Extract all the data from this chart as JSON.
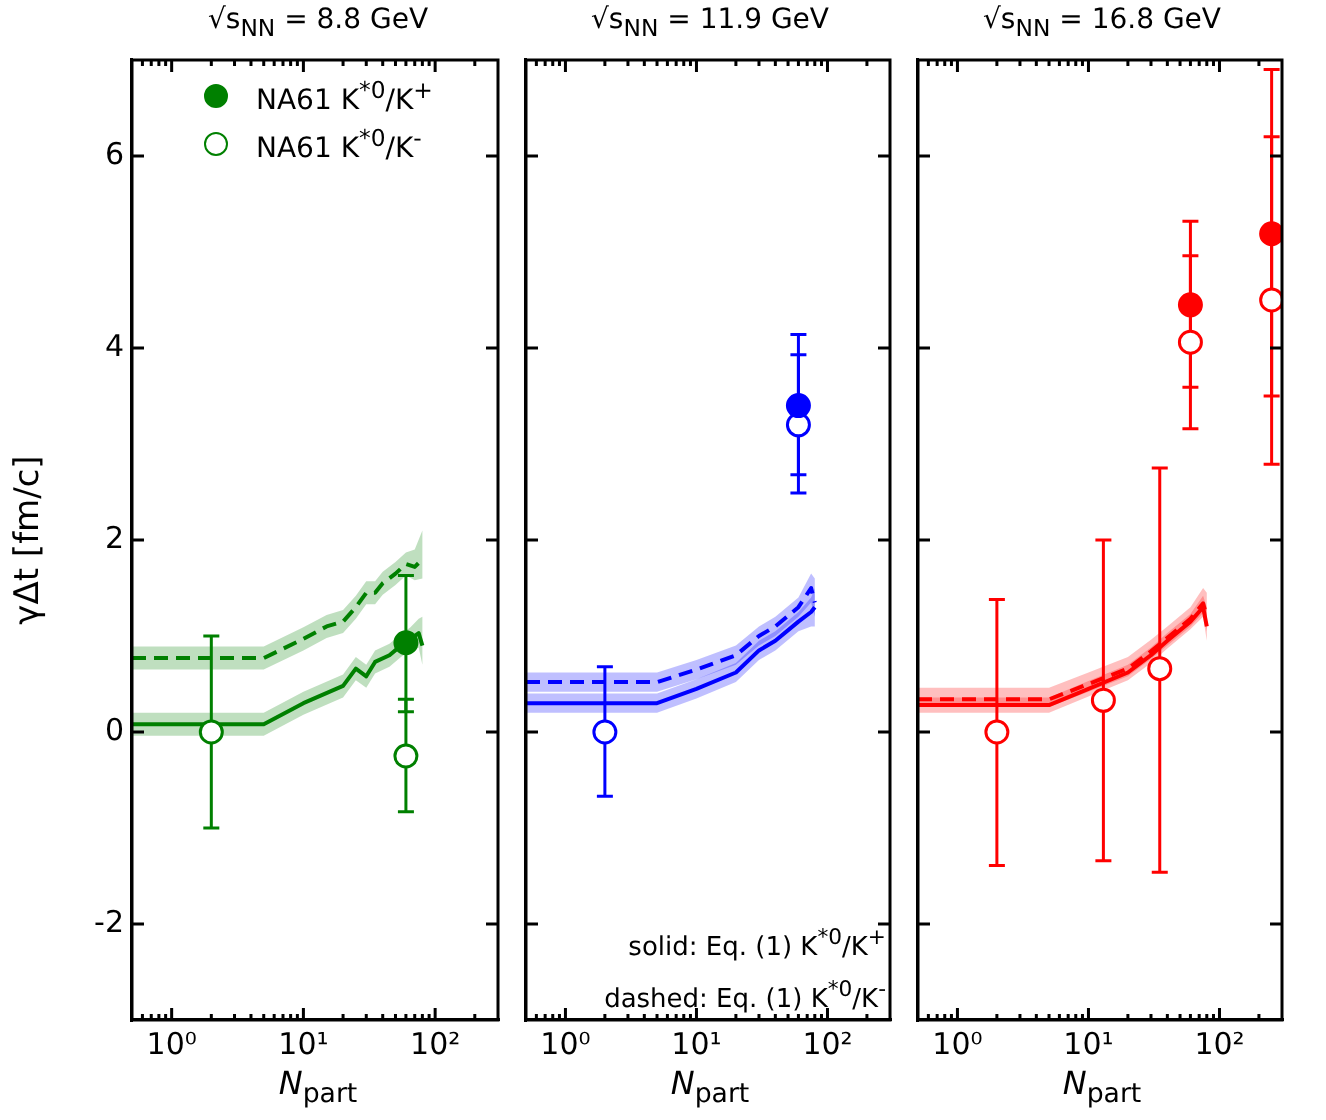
{
  "chart_data": [
    {
      "type": "line",
      "title": "√s$_{NN}$ = 8.8 GeV",
      "xlabel": "N$_{part}$",
      "ylabel": "γΔt [fm/c]",
      "log": "x",
      "grid": false,
      "legend": "top",
      "xlim": [
        0.5,
        300
      ],
      "ylim": [
        -3,
        7
      ],
      "yticks": [
        -2,
        0,
        2,
        4,
        6
      ],
      "xticks": [
        {
          "value": 0.6,
          "label": null
        },
        {
          "value": 0.7,
          "label": null
        },
        {
          "value": 0.8,
          "label": null
        },
        {
          "value": 0.9,
          "label": null
        },
        {
          "value": 1,
          "label": "10⁰"
        },
        {
          "value": 2,
          "label": null
        },
        {
          "value": 3,
          "label": null
        },
        {
          "value": 4,
          "label": null
        },
        {
          "value": 5,
          "label": null
        },
        {
          "value": 6,
          "label": null
        },
        {
          "value": 7,
          "label": null
        },
        {
          "value": 8,
          "label": null
        },
        {
          "value": 9,
          "label": null
        },
        {
          "value": 10,
          "label": "10¹"
        },
        {
          "value": 20,
          "label": null
        },
        {
          "value": 30,
          "label": null
        },
        {
          "value": 40,
          "label": null
        },
        {
          "value": 50,
          "label": null
        },
        {
          "value": 60,
          "label": null
        },
        {
          "value": 70,
          "label": null
        },
        {
          "value": 80,
          "label": null
        },
        {
          "value": 90,
          "label": null
        },
        {
          "value": 100,
          "label": "10²"
        },
        {
          "value": 200,
          "label": null
        }
      ],
      "series": [
        {
          "type": "line",
          "color": "#008000",
          "line_style": "solid",
          "x": [
            0.5,
            5,
            10,
            20,
            25,
            30,
            35,
            45,
            55,
            65,
            75,
            80
          ],
          "values": [
            0.08,
            0.08,
            0.3,
            0.48,
            0.66,
            0.58,
            0.73,
            0.8,
            0.9,
            0.97,
            1.03,
            0.9
          ],
          "lower": [
            -0.04,
            -0.04,
            0.18,
            0.36,
            0.54,
            0.46,
            0.61,
            0.68,
            0.78,
            0.85,
            0.88,
            0.7
          ],
          "upper": [
            0.2,
            0.2,
            0.42,
            0.6,
            0.78,
            0.7,
            0.85,
            0.92,
            1.02,
            1.09,
            1.18,
            1.2
          ]
        },
        {
          "type": "line",
          "color": "#008000",
          "line_style": "dashed",
          "x": [
            0.5,
            5,
            10,
            15,
            20,
            25,
            30,
            35,
            40,
            50,
            60,
            70,
            80
          ],
          "values": [
            0.77,
            0.77,
            0.97,
            1.1,
            1.15,
            1.3,
            1.45,
            1.45,
            1.55,
            1.65,
            1.75,
            1.72,
            1.8
          ],
          "lower": [
            0.65,
            0.65,
            0.85,
            0.98,
            1.03,
            1.18,
            1.33,
            1.33,
            1.43,
            1.53,
            1.63,
            1.58,
            1.6
          ],
          "upper": [
            0.89,
            0.89,
            1.09,
            1.22,
            1.27,
            1.42,
            1.57,
            1.57,
            1.67,
            1.77,
            1.87,
            1.9,
            2.1
          ]
        },
        {
          "type": "scatter",
          "name": "NA61 K$^{*0}$/K$^{+}$",
          "color": "#008000",
          "marker": "circle",
          "x": [
            60
          ],
          "values": [
            0.93
          ],
          "errors": [
            [
              0.21,
              1.63
            ]
          ]
        },
        {
          "type": "scatter",
          "name": "NA61 K$^{*0}$/K$^{-}$",
          "color": "#008000",
          "marker": "circle",
          "x": [
            2,
            60
          ],
          "values": [
            0,
            -0.25
          ],
          "errors": [
            [
              -1.0,
              1.0
            ],
            [
              -0.83,
              0.34
            ]
          ]
        }
      ]
    },
    {
      "type": "line",
      "title": "√s$_{NN}$ = 11.9 GeV",
      "xlabel": "N$_{part}$",
      "log": "x",
      "grid": false,
      "tick_labels": "x",
      "annotations": [
        "solid: Eq. (1) K$^{*0}$/K$^{+}$",
        "dashed: Eq. (1) K$^{*0}$/K$^{-}$"
      ],
      "xlim": [
        0.5,
        300
      ],
      "ylim": [
        -3,
        7
      ],
      "yticks": [
        -2,
        0,
        2,
        4,
        6
      ],
      "xticks": [
        {
          "value": 0.6,
          "label": null
        },
        {
          "value": 0.7,
          "label": null
        },
        {
          "value": 0.8,
          "label": null
        },
        {
          "value": 0.9,
          "label": null
        },
        {
          "value": 1,
          "label": "10⁰"
        },
        {
          "value": 2,
          "label": null
        },
        {
          "value": 3,
          "label": null
        },
        {
          "value": 4,
          "label": null
        },
        {
          "value": 5,
          "label": null
        },
        {
          "value": 6,
          "label": null
        },
        {
          "value": 7,
          "label": null
        },
        {
          "value": 8,
          "label": null
        },
        {
          "value": 9,
          "label": null
        },
        {
          "value": 10,
          "label": "10¹"
        },
        {
          "value": 20,
          "label": null
        },
        {
          "value": 30,
          "label": null
        },
        {
          "value": 40,
          "label": null
        },
        {
          "value": 50,
          "label": null
        },
        {
          "value": 60,
          "label": null
        },
        {
          "value": 70,
          "label": null
        },
        {
          "value": 80,
          "label": null
        },
        {
          "value": 90,
          "label": null
        },
        {
          "value": 100,
          "label": "10²"
        },
        {
          "value": 200,
          "label": null
        }
      ],
      "series": [
        {
          "type": "line",
          "color": "#0000ff",
          "line_style": "solid",
          "x": [
            0.5,
            5,
            10,
            20,
            30,
            40,
            60,
            75,
            80
          ],
          "values": [
            0.3,
            0.3,
            0.45,
            0.62,
            0.85,
            0.95,
            1.15,
            1.25,
            1.3
          ],
          "lower": [
            0.2,
            0.2,
            0.35,
            0.52,
            0.75,
            0.85,
            1.05,
            1.1,
            1.1
          ],
          "upper": [
            0.4,
            0.4,
            0.55,
            0.72,
            0.95,
            1.05,
            1.25,
            1.4,
            1.5
          ]
        },
        {
          "type": "line",
          "color": "#0000ff",
          "line_style": "dashed",
          "x": [
            0.5,
            5,
            10,
            20,
            30,
            40,
            60,
            75,
            80
          ],
          "values": [
            0.52,
            0.52,
            0.65,
            0.8,
            1.0,
            1.1,
            1.3,
            1.5,
            1.35
          ],
          "lower": [
            0.42,
            0.42,
            0.55,
            0.7,
            0.9,
            1.0,
            1.2,
            1.35,
            1.2
          ],
          "upper": [
            0.62,
            0.62,
            0.75,
            0.9,
            1.1,
            1.2,
            1.4,
            1.65,
            1.6
          ]
        },
        {
          "type": "scatter",
          "color": "#0000ff",
          "marker": "circle",
          "x": [
            60
          ],
          "values": [
            3.4
          ],
          "errors": [
            [
              2.49,
              4.14
            ]
          ]
        },
        {
          "type": "scatter",
          "color": "#0000ff",
          "marker": "circle",
          "x": [
            2,
            60
          ],
          "values": [
            0,
            3.2
          ],
          "errors": [
            [
              -0.67,
              0.68
            ],
            [
              2.68,
              3.93
            ]
          ]
        }
      ]
    },
    {
      "type": "line",
      "title": "√s$_{NN}$ = 16.8 GeV",
      "xlabel": "N$_{part}$",
      "log": "x",
      "grid": false,
      "tick_labels": "x",
      "xlim": [
        0.5,
        300
      ],
      "ylim": [
        -3,
        7
      ],
      "yticks": [
        -2,
        0,
        2,
        4,
        6
      ],
      "xticks": [
        {
          "value": 0.6,
          "label": null
        },
        {
          "value": 0.7,
          "label": null
        },
        {
          "value": 0.8,
          "label": null
        },
        {
          "value": 0.9,
          "label": null
        },
        {
          "value": 1,
          "label": "10⁰"
        },
        {
          "value": 2,
          "label": null
        },
        {
          "value": 3,
          "label": null
        },
        {
          "value": 4,
          "label": null
        },
        {
          "value": 5,
          "label": null
        },
        {
          "value": 6,
          "label": null
        },
        {
          "value": 7,
          "label": null
        },
        {
          "value": 8,
          "label": null
        },
        {
          "value": 9,
          "label": null
        },
        {
          "value": 10,
          "label": "10¹"
        },
        {
          "value": 20,
          "label": null
        },
        {
          "value": 30,
          "label": null
        },
        {
          "value": 40,
          "label": null
        },
        {
          "value": 50,
          "label": null
        },
        {
          "value": 60,
          "label": null
        },
        {
          "value": 70,
          "label": null
        },
        {
          "value": 80,
          "label": null
        },
        {
          "value": 90,
          "label": null
        },
        {
          "value": 100,
          "label": "10²"
        },
        {
          "value": 200,
          "label": null
        }
      ],
      "series": [
        {
          "type": "line",
          "color": "#ff0000",
          "line_style": "solid",
          "x": [
            0.5,
            5,
            10,
            20,
            30,
            40,
            60,
            75,
            80
          ],
          "values": [
            0.28,
            0.28,
            0.45,
            0.62,
            0.8,
            0.95,
            1.15,
            1.3,
            1.1
          ],
          "lower": [
            0.2,
            0.2,
            0.37,
            0.54,
            0.72,
            0.87,
            1.07,
            1.2,
            0.95
          ],
          "upper": [
            0.36,
            0.36,
            0.53,
            0.7,
            0.88,
            1.03,
            1.23,
            1.42,
            1.3
          ]
        },
        {
          "type": "line",
          "color": "#ff0000",
          "line_style": "dashed",
          "x": [
            0.5,
            5,
            10,
            20,
            30,
            40,
            60,
            75,
            80
          ],
          "values": [
            0.34,
            0.34,
            0.5,
            0.66,
            0.84,
            0.98,
            1.18,
            1.34,
            1.2
          ],
          "lower": [
            0.26,
            0.26,
            0.42,
            0.58,
            0.76,
            0.9,
            1.1,
            1.24,
            1.05
          ],
          "upper": [
            0.46,
            0.46,
            0.62,
            0.78,
            0.96,
            1.1,
            1.3,
            1.5,
            1.45
          ]
        },
        {
          "type": "scatter",
          "color": "#ff0000",
          "marker": "circle",
          "x": [
            60,
            250
          ],
          "values": [
            4.45,
            5.19
          ],
          "errors": [
            [
              3.16,
              5.32
            ],
            [
              2.79,
              6.9
            ]
          ]
        },
        {
          "type": "scatter",
          "color": "#ff0000",
          "marker": "circle",
          "x": [
            2,
            13,
            35,
            60,
            250
          ],
          "values": [
            0,
            0.33,
            0.66,
            4.06,
            4.5
          ],
          "errors": [
            [
              -1.39,
              1.38
            ],
            [
              -1.34,
              2.0
            ],
            [
              -1.46,
              2.75
            ],
            [
              3.59,
              4.96
            ],
            [
              3.5,
              6.2
            ]
          ]
        }
      ]
    }
  ]
}
